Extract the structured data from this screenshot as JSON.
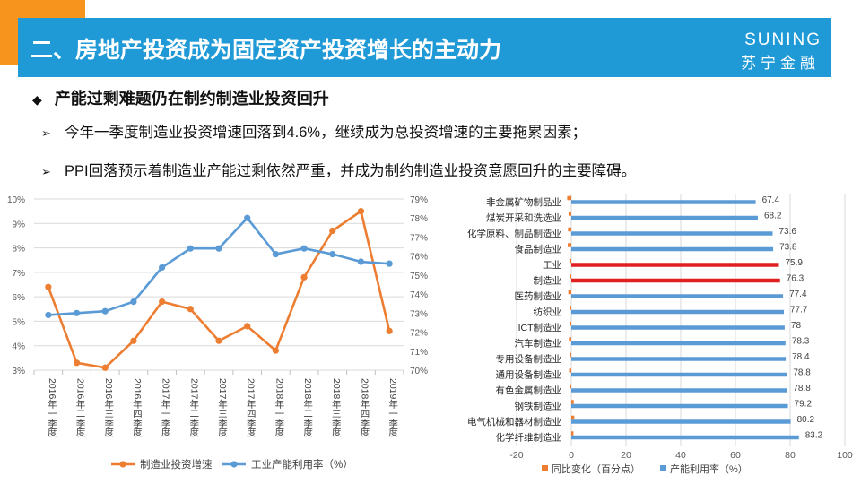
{
  "slide": {
    "title": "二、房地产投资成为固定资产投资增长的主动力",
    "logo_en": "SUNING",
    "logo_cn": "苏宁金融",
    "subtitle": "产能过剩难题仍在制约制造业投资回升",
    "bullets": [
      "今年一季度制造业投资增速回落到4.6%，继续成为总投资增速的主要拖累因素；",
      "PPI回落预示着制造业产能过剩依然严重，并成为制约制造业投资意愿回升的主要障碍。"
    ]
  },
  "chart_data": [
    {
      "type": "line",
      "categories": [
        "2016年一季度",
        "2016年二季度",
        "2016年三季度",
        "2016年四季度",
        "2017年一季度",
        "2017年二季度",
        "2017年三季度",
        "2017年四季度",
        "2018年一季度",
        "2018年二季度",
        "2018年三季度",
        "2018年四季度",
        "2019年一季度"
      ],
      "series": [
        {
          "name": "制造业投资增速",
          "axis": "left",
          "color": "#ed7d31",
          "values": [
            6.4,
            3.3,
            3.1,
            4.2,
            5.8,
            5.5,
            4.2,
            4.8,
            3.8,
            6.8,
            8.7,
            9.5,
            4.6
          ]
        },
        {
          "name": "工业产能利用率（%）",
          "axis": "right",
          "color": "#5b9bd5",
          "values": [
            72.9,
            73.0,
            73.1,
            73.6,
            75.4,
            76.4,
            76.4,
            78.0,
            76.1,
            76.4,
            76.1,
            75.7,
            75.6
          ]
        }
      ],
      "y_left": {
        "ylim": [
          3,
          10
        ],
        "ticks": [
          "3%",
          "4%",
          "5%",
          "6%",
          "7%",
          "8%",
          "9%",
          "10%"
        ]
      },
      "y_right": {
        "ylim": [
          70,
          79
        ],
        "ticks": [
          "70%",
          "71%",
          "72%",
          "73%",
          "74%",
          "75%",
          "76%",
          "77%",
          "78%",
          "79%"
        ]
      },
      "grid": true,
      "legend": "bottom"
    },
    {
      "type": "bar",
      "orientation": "horizontal",
      "categories": [
        "非金属矿物制品业",
        "煤炭开采和洗选业",
        "化学原料、制品制造业",
        "食品制造业",
        "工业",
        "制造业",
        "医药制造业",
        "纺织业",
        "ICT制造业",
        "汽车制造业",
        "专用设备制造业",
        "通用设备制造业",
        "有色金属制造业",
        "钢铁制造业",
        "电气机械和器材制造业",
        "化学纤维制造业"
      ],
      "highlight": [
        "工业",
        "制造业"
      ],
      "highlight_color": "#e02020",
      "series": [
        {
          "name": "同比变化（百分点）",
          "color": "#ed7d31",
          "values": [
            -1.5,
            -1.0,
            -1.2,
            -1.3,
            -0.7,
            -0.6,
            -1.1,
            -0.5,
            -0.4,
            -0.9,
            -0.6,
            -0.8,
            -0.5,
            0.9,
            1.1,
            0.8
          ]
        },
        {
          "name": "产能利用率（%）",
          "color": "#5b9bd5",
          "values": [
            67.4,
            68.2,
            73.6,
            73.8,
            75.9,
            76.3,
            77.4,
            77.7,
            78,
            78.3,
            78.4,
            78.8,
            78.8,
            79.2,
            80.2,
            83.2
          ]
        }
      ],
      "value_labels": [
        "67.4",
        "68.2",
        "73.6",
        "73.8",
        "75.9",
        "76.3",
        "77.4",
        "77.7",
        "78",
        "78.3",
        "78.4",
        "78.8",
        "78.8",
        "79.2",
        "80.2",
        "83.2"
      ],
      "xlim": [
        -20,
        100
      ],
      "x_ticks": [
        "-20",
        "0",
        "20",
        "40",
        "60",
        "80",
        "100"
      ],
      "grid": true,
      "legend": "bottom"
    }
  ]
}
